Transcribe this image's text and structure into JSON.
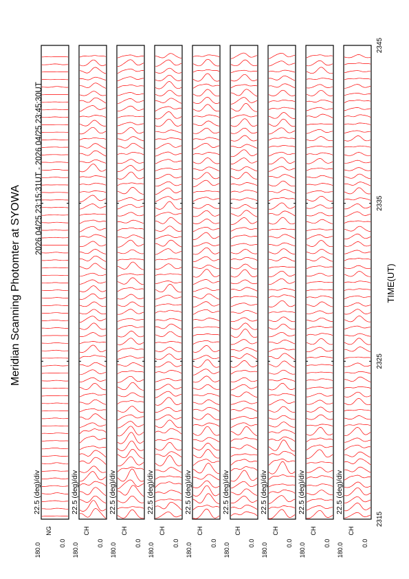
{
  "chart_data": {
    "type": "line",
    "title": "Meridian Scanning Photomter at SYOWA",
    "subtitle": "2026 04/25 23:15:31UT - 2026 04/25 23:45:30UT",
    "xlabel": "TIME(UT)",
    "x_ticks": [
      "2315",
      "2325",
      "2335",
      "2345"
    ],
    "x_range": [
      "2315",
      "2345"
    ],
    "y_range": [
      0.0,
      180.0
    ],
    "y_tick_top": "180.0",
    "y_tick_bottom": "0.0",
    "scale_label": "22.5 (deg)/div",
    "grid": false,
    "panels": [
      {
        "channel": "NG"
      },
      {
        "channel": "CH"
      },
      {
        "channel": "CH"
      },
      {
        "channel": "CH"
      },
      {
        "channel": "CH"
      },
      {
        "channel": "CH"
      },
      {
        "channel": "CH"
      },
      {
        "channel": "CH"
      },
      {
        "channel": "CH"
      }
    ],
    "colors": {
      "trace": "#ff0000",
      "frame": "#000000"
    }
  }
}
